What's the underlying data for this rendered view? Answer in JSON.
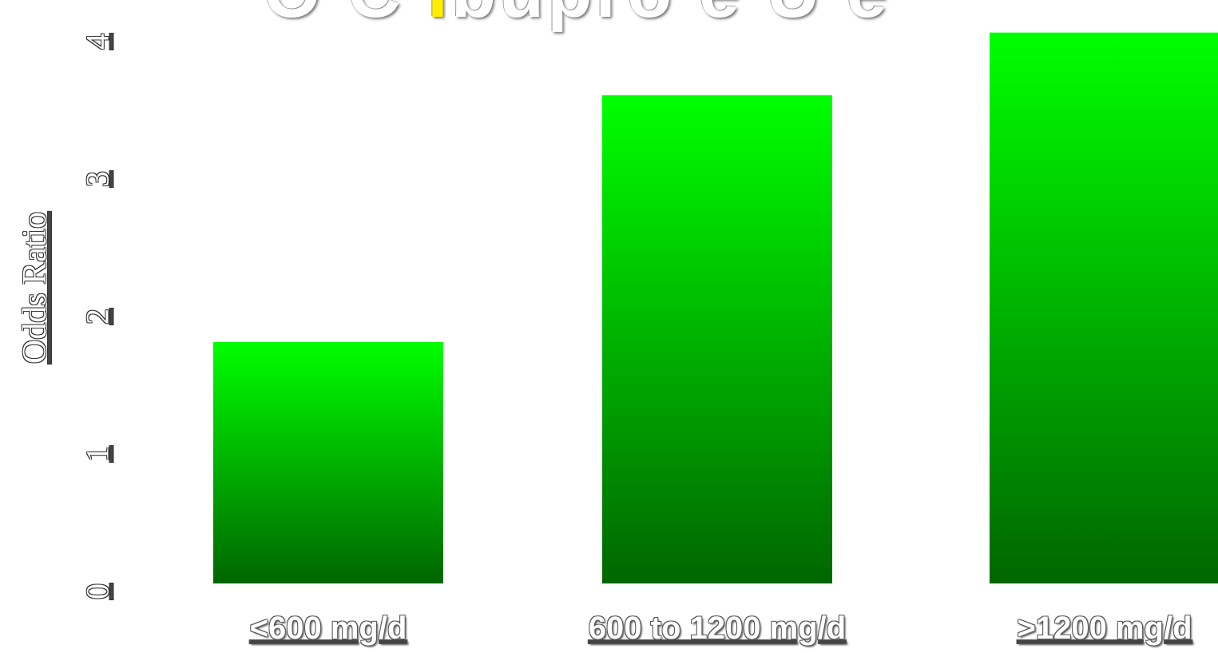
{
  "header": {
    "title_partial_left": "O C ",
    "title_partial_accent": "I",
    "title_partial_right": "bupro e U e"
  },
  "chart_data": {
    "type": "bar",
    "categories": [
      "<600 mg/d",
      "600 to 1200 mg/d",
      ">1200 mg/d"
    ],
    "values": [
      1.77,
      3.58,
      4.04
    ],
    "xlabel": "",
    "ylabel": "Odds Ratio",
    "yticks": [
      "0",
      "1",
      "2",
      "3",
      "4"
    ],
    "ylim": [
      0,
      4.05
    ],
    "grid": false,
    "legend": "none",
    "colors": {
      "bar_top": "#00ff00",
      "bar_bottom": "#006600"
    }
  }
}
